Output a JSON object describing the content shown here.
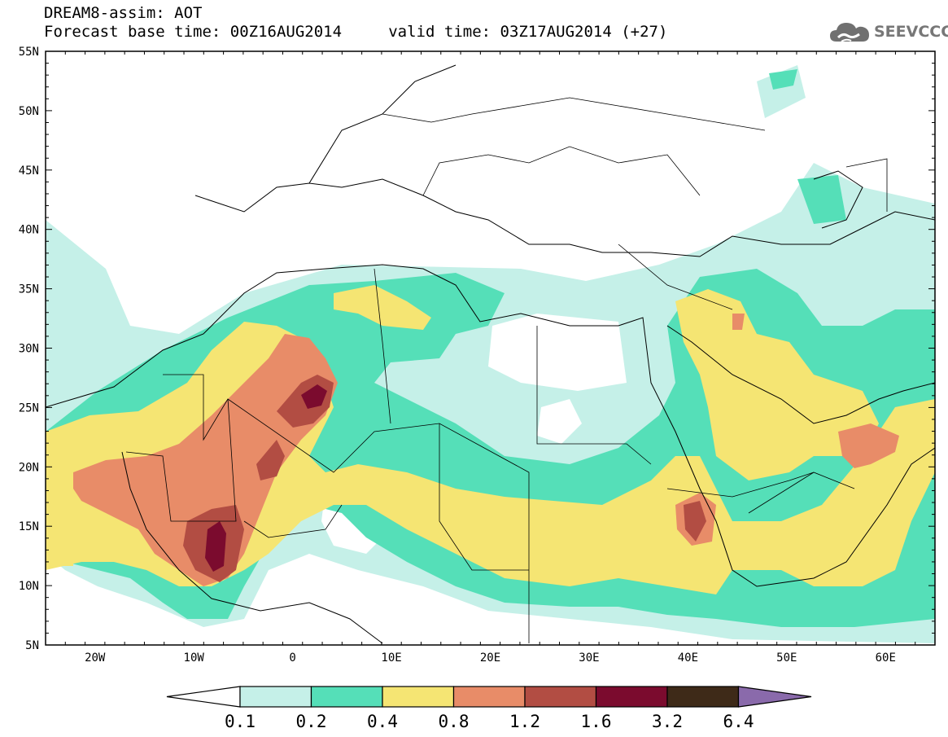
{
  "title": {
    "line1": "DREAM8-assim: AOT",
    "line2": "Forecast base time: 00Z16AUG2014     valid time: 03Z17AUG2014 (+27)"
  },
  "logo": {
    "text": "SEEVCCC",
    "icon": "cloud-icon",
    "color": "#707070"
  },
  "map": {
    "extent": {
      "lon": [
        -25,
        65
      ],
      "lat": [
        5,
        55
      ]
    },
    "lon_ticks": [
      {
        "value": -20,
        "label": "20W"
      },
      {
        "value": -10,
        "label": "10W"
      },
      {
        "value": 0,
        "label": "0"
      },
      {
        "value": 10,
        "label": "10E"
      },
      {
        "value": 20,
        "label": "20E"
      },
      {
        "value": 30,
        "label": "30E"
      },
      {
        "value": 40,
        "label": "40E"
      },
      {
        "value": 50,
        "label": "50E"
      },
      {
        "value": 60,
        "label": "60E"
      }
    ],
    "lat_ticks": [
      {
        "value": 5,
        "label": "5N"
      },
      {
        "value": 10,
        "label": "10N"
      },
      {
        "value": 15,
        "label": "15N"
      },
      {
        "value": 20,
        "label": "20N"
      },
      {
        "value": 25,
        "label": "25N"
      },
      {
        "value": 30,
        "label": "30N"
      },
      {
        "value": 35,
        "label": "35N"
      },
      {
        "value": 40,
        "label": "40N"
      },
      {
        "value": 45,
        "label": "45N"
      },
      {
        "value": 50,
        "label": "50N"
      },
      {
        "value": 55,
        "label": "55N"
      }
    ]
  },
  "colorbar": {
    "labels": [
      "0.1",
      "0.2",
      "0.4",
      "0.8",
      "1.2",
      "1.6",
      "3.2",
      "6.4"
    ],
    "colors": [
      "#ffffff",
      "#c5f0e8",
      "#55dfb8",
      "#f5e573",
      "#e88c68",
      "#b24d43",
      "#7b0b2e",
      "#3e2a18",
      "#8a6aab"
    ]
  }
}
